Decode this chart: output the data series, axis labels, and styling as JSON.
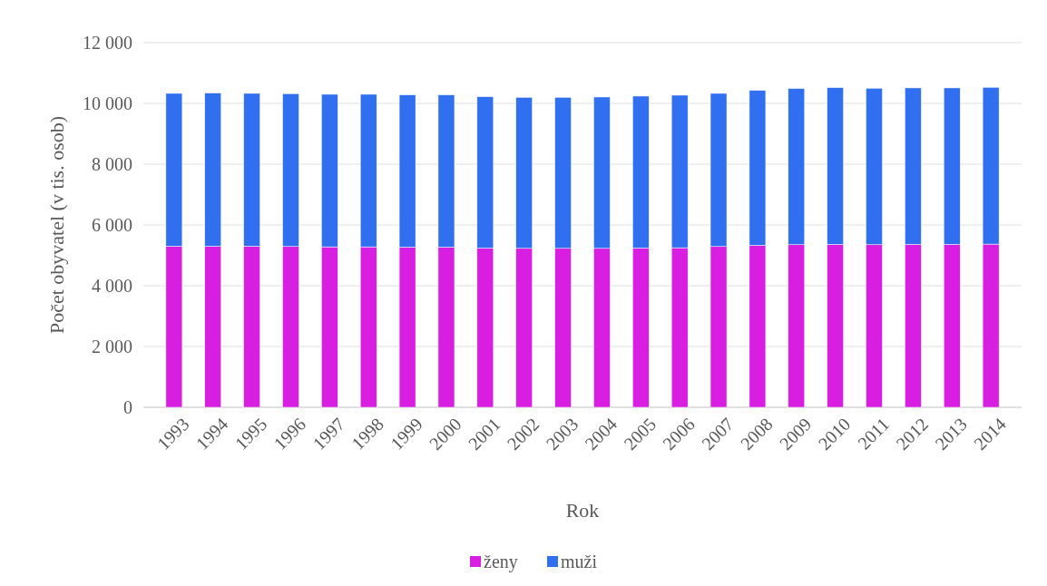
{
  "chart_data": {
    "type": "bar",
    "stacked": true,
    "xlabel": "Rok",
    "ylabel": "Počet obyvatel (v tis. osob)",
    "categories": [
      "1993",
      "1994",
      "1995",
      "1996",
      "1997",
      "1998",
      "1999",
      "2000",
      "2001",
      "2002",
      "2003",
      "2004",
      "2005",
      "2006",
      "2007",
      "2008",
      "2009",
      "2010",
      "2011",
      "2012",
      "2013",
      "2014"
    ],
    "series": [
      {
        "name": "ženy",
        "color": "#d81ee0",
        "values": [
          5300,
          5300,
          5300,
          5290,
          5280,
          5280,
          5270,
          5270,
          5240,
          5230,
          5230,
          5230,
          5240,
          5250,
          5290,
          5330,
          5350,
          5360,
          5350,
          5360,
          5360,
          5370
        ]
      },
      {
        "name": "muži",
        "color": "#2f6ff0",
        "values": [
          5030,
          5040,
          5030,
          5030,
          5020,
          5020,
          5010,
          5010,
          4980,
          4970,
          4970,
          4980,
          5000,
          5020,
          5040,
          5100,
          5140,
          5160,
          5150,
          5150,
          5150,
          5160
        ]
      }
    ],
    "ylim": [
      0,
      12000
    ],
    "yticks": [
      {
        "value": 0,
        "label": "0"
      },
      {
        "value": 2000,
        "label": "2 000"
      },
      {
        "value": 4000,
        "label": "4 000"
      },
      {
        "value": 6000,
        "label": "6 000"
      },
      {
        "value": 8000,
        "label": "8 000"
      },
      {
        "value": 10000,
        "label": "10 000"
      },
      {
        "value": 12000,
        "label": "12 000"
      }
    ],
    "grid": "y",
    "legend": "bottom"
  }
}
